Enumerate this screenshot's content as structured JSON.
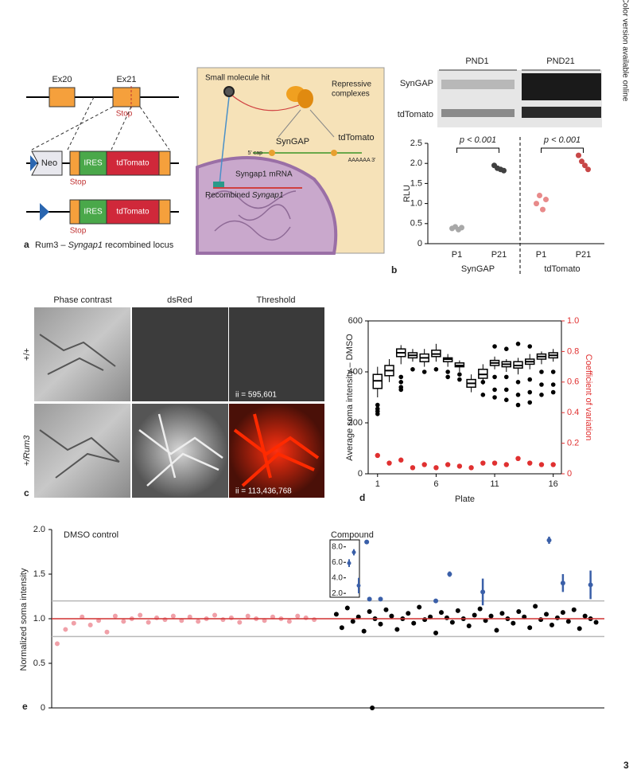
{
  "side_note": "Color version available online",
  "page_number": "3",
  "panel_a": {
    "label": "a",
    "caption_prefix": "Rum3 – ",
    "caption_gene": "Syngap1",
    "caption_suffix": " recombined locus",
    "exons": [
      "Ex20",
      "Ex21"
    ],
    "stop": "Stop",
    "neo": "Neo",
    "ires": "IRES",
    "reporter": "tdTomato"
  },
  "illustration": {
    "small_molecule": "Small molecule hit",
    "repressive": [
      "Repressive",
      "complexes"
    ],
    "syngap": "SynGAP",
    "tdtomato": "tdTomato",
    "cap": "5' cap",
    "polya": "AAAAAA 3'",
    "mrna": "Syngap1 mRNA",
    "recombined_prefix": "Recombined ",
    "recombined_gene": "Syngap1"
  },
  "blot": {
    "lanes": [
      "PND1",
      "PND21"
    ],
    "rows": [
      "SynGAP",
      "tdTomato"
    ]
  },
  "panel_c": {
    "label": "c",
    "columns": [
      "Phase contrast",
      "dsRed",
      "Threshold"
    ],
    "rows": [
      "+/+",
      "+/Rum3"
    ],
    "counts": [
      "ii = 595,601",
      "ii = 113,436,768"
    ]
  },
  "chart_data": [
    {
      "type": "dot",
      "label": "b",
      "ylabel": "RLU",
      "categories": [
        "P1",
        "P21",
        "P1",
        "P21"
      ],
      "groups": [
        "SynGAP",
        "tdTomato"
      ],
      "values": [
        [
          0.38,
          0.42,
          0.35,
          0.4
        ],
        [
          1.95,
          1.88,
          1.85,
          1.82
        ],
        [
          1.0,
          1.2,
          0.85,
          1.1
        ],
        [
          2.2,
          2.05,
          1.95,
          1.85
        ]
      ],
      "colors": [
        "#a8a8a8",
        "#404040",
        "#e88a8a",
        "#c84848"
      ],
      "annotations": [
        "p < 0.001",
        "p < 0.001"
      ],
      "ylim": [
        0,
        2.5
      ],
      "yticks": [
        0,
        0.5,
        {
          "value": 1,
          "label": "1.0"
        },
        1.5,
        {
          "value": 2,
          "label": "2.0"
        },
        2.5
      ]
    },
    {
      "type": "box",
      "label": "d",
      "xlabel": "Plate",
      "ylabel": "Average soma intensity – DMSO",
      "y2label": "Coefficient of variation",
      "y2color": "#e03030",
      "x": [
        1,
        2,
        3,
        4,
        5,
        6,
        7,
        8,
        9,
        10,
        11,
        12,
        13,
        14,
        15,
        16
      ],
      "boxes": [
        {
          "low": 300,
          "q1": 335,
          "median": 365,
          "q3": 390,
          "high": 420,
          "outliers": [
            270,
            255,
            245,
            235
          ]
        },
        {
          "low": 360,
          "q1": 385,
          "median": 405,
          "q3": 425,
          "high": 450,
          "outliers": []
        },
        {
          "low": 430,
          "q1": 460,
          "median": 475,
          "q3": 490,
          "high": 505,
          "outliers": [
            380,
            360,
            340,
            330
          ]
        },
        {
          "low": 440,
          "q1": 455,
          "median": 465,
          "q3": 475,
          "high": 490,
          "outliers": [
            410
          ]
        },
        {
          "low": 420,
          "q1": 440,
          "median": 455,
          "q3": 470,
          "high": 490,
          "outliers": [
            400
          ]
        },
        {
          "low": 440,
          "q1": 460,
          "median": 470,
          "q3": 485,
          "high": 510,
          "outliers": [
            410
          ]
        },
        {
          "low": 420,
          "q1": 440,
          "median": 450,
          "q3": 455,
          "high": 470,
          "outliers": [
            400,
            380
          ]
        },
        {
          "low": 400,
          "q1": 420,
          "median": 425,
          "q3": 435,
          "high": 445,
          "outliers": [
            390,
            370
          ]
        },
        {
          "low": 320,
          "q1": 340,
          "median": 355,
          "q3": 370,
          "high": 390,
          "outliers": []
        },
        {
          "low": 350,
          "q1": 375,
          "median": 390,
          "q3": 410,
          "high": 430,
          "outliers": [
            310,
            360
          ]
        },
        {
          "low": 410,
          "q1": 425,
          "median": 435,
          "q3": 445,
          "high": 460,
          "outliers": [
            500,
            380,
            330,
            300
          ]
        },
        {
          "low": 400,
          "q1": 420,
          "median": 430,
          "q3": 440,
          "high": 450,
          "outliers": [
            490,
            380,
            330,
            290
          ]
        },
        {
          "low": 390,
          "q1": 415,
          "median": 425,
          "q3": 440,
          "high": 455,
          "outliers": [
            510,
            360,
            310,
            270
          ]
        },
        {
          "low": 410,
          "q1": 430,
          "median": 440,
          "q3": 450,
          "high": 470,
          "outliers": [
            500,
            370,
            320,
            280
          ]
        },
        {
          "low": 430,
          "q1": 450,
          "median": 460,
          "q3": 470,
          "high": 480,
          "outliers": [
            400,
            350,
            310
          ]
        },
        {
          "low": 440,
          "q1": 455,
          "median": 465,
          "q3": 475,
          "high": 490,
          "outliers": [
            400,
            350,
            320
          ]
        }
      ],
      "series": [
        {
          "color": "#e03030",
          "axis": "y2",
          "values": [
            0.12,
            0.07,
            0.09,
            0.04,
            0.06,
            0.04,
            0.06,
            0.05,
            0.04,
            0.07,
            0.07,
            0.06,
            0.1,
            0.07,
            0.06,
            0.06
          ]
        }
      ],
      "xlim": [
        0.2,
        16.7
      ],
      "xticks": [
        1,
        6,
        11,
        16
      ],
      "ylim": [
        0,
        600
      ],
      "yticks": [
        0,
        200,
        400,
        600
      ],
      "y2lim": [
        0,
        1
      ],
      "y2ticks": [
        0,
        0.2,
        0.4,
        0.6,
        0.8,
        {
          "value": 1,
          "label": "1.0"
        }
      ]
    },
    {
      "type": "scatter",
      "label": "e",
      "ylabel": "Normalized soma intensity",
      "annotations": [
        "DMSO control",
        "Compound"
      ],
      "xlim": [
        0,
        200
      ],
      "ylim": [
        0,
        2
      ],
      "yticks": [
        0,
        0.5,
        {
          "value": 1,
          "label": "1.0"
        },
        1.5,
        {
          "value": 2,
          "label": "2.0"
        }
      ],
      "thresholds": [
        1.2,
        0.8
      ],
      "mean_line": 1,
      "mean_color": "#d03030",
      "threshold_color": "#b8b8b8",
      "series": [
        {
          "color": "#f0a0a8",
          "x": [
            2,
            5,
            8,
            11,
            14,
            17,
            20,
            23,
            26,
            29,
            32,
            35,
            38,
            41,
            44,
            47,
            50,
            53,
            56,
            59,
            62,
            65,
            68,
            71,
            74,
            77,
            80,
            83,
            86,
            89,
            92,
            95
          ],
          "values": [
            0.72,
            0.88,
            0.95,
            1.02,
            0.93,
            0.98,
            0.85,
            1.03,
            0.97,
            1.0,
            1.04,
            0.96,
            1.01,
            0.99,
            1.03,
            0.98,
            1.02,
            0.97,
            1.0,
            1.04,
            0.99,
            1.01,
            0.96,
            1.03,
            1.0,
            0.98,
            1.02,
            1.0,
            0.97,
            1.03,
            1.01,
            0.99
          ]
        },
        {
          "color": "#000000",
          "x": [
            103,
            105,
            107,
            109,
            111,
            113,
            115,
            117,
            119,
            121,
            123,
            125,
            127,
            129,
            131,
            133,
            135,
            137,
            139,
            141,
            143,
            145,
            147,
            149,
            151,
            153,
            155,
            157,
            159,
            161,
            163,
            165,
            167,
            169,
            171,
            173,
            175,
            177,
            179,
            181,
            183,
            185,
            187,
            189,
            191,
            193,
            195,
            197
          ],
          "values": [
            1.05,
            0.9,
            1.12,
            0.97,
            1.02,
            0.86,
            1.08,
            1.0,
            0.94,
            1.1,
            1.03,
            0.88,
            1.0,
            1.06,
            0.95,
            1.13,
            0.99,
            1.02,
            0.84,
            1.07,
            1.01,
            0.96,
            1.09,
            1.0,
            0.92,
            1.04,
            1.11,
            0.98,
            1.03,
            0.87,
            1.06,
            1.0,
            0.95,
            1.08,
            1.02,
            0.9,
            1.14,
            0.99,
            1.05,
            0.93,
            1.01,
            1.07,
            0.97,
            1.1,
            0.89,
            1.03,
            1.0,
            0.96
          ]
        },
        {
          "color": "#3a5fa8",
          "x": [
            114,
            115,
            119,
            139,
            144,
            156,
            180,
            185,
            195
          ],
          "values": [
            1.86,
            1.22,
            1.22,
            1.2,
            1.5,
            1.3,
            1.88,
            1.4,
            1.38
          ],
          "errors": [
            0.01,
            0.02,
            0.02,
            0.01,
            0.03,
            0.15,
            0.04,
            0.1,
            0.16
          ]
        },
        {
          "color": "#000000",
          "x": [
            116
          ],
          "values": [
            0
          ]
        }
      ],
      "inset": {
        "color": "#3a5fa8",
        "values": [
          5.9,
          7.3,
          3.0
        ],
        "errors": [
          0.5,
          0.4,
          1.0
        ],
        "ylim": [
          1.5,
          8.9
        ],
        "yticks": [
          {
            "value": 2,
            "label": "2.0"
          },
          {
            "value": 4,
            "label": "4.0"
          },
          {
            "value": 6,
            "label": "6.0"
          },
          {
            "value": 8,
            "label": "8.0"
          }
        ]
      }
    }
  ]
}
